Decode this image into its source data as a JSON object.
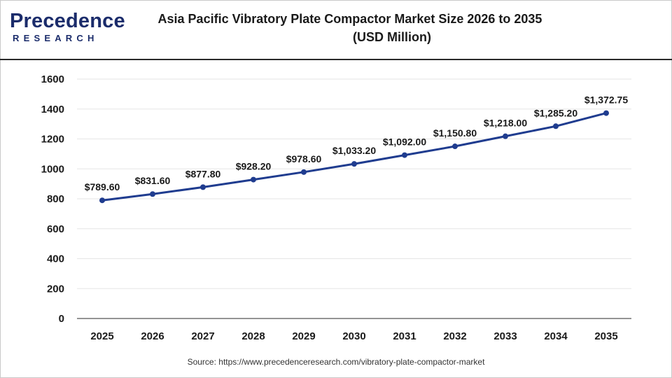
{
  "header": {
    "logo_main": "Precedence",
    "logo_sub": "RESEARCH",
    "title_line1": "Asia Pacific Vibratory Plate Compactor Market Size 2026 to 2035",
    "title_line2": "(USD Million)"
  },
  "footer": {
    "source": "Source: https://www.precedenceresearch.com/vibratory-plate-compactor-market"
  },
  "colors": {
    "line": "#1f3c8f",
    "marker": "#1f3c8f",
    "grid": "#e6e6e6",
    "axis": "#555555"
  },
  "chart_data": {
    "type": "line",
    "categories": [
      "2025",
      "2026",
      "2027",
      "2028",
      "2029",
      "2030",
      "2031",
      "2032",
      "2033",
      "2034",
      "2035"
    ],
    "values": [
      789.6,
      831.6,
      877.8,
      928.2,
      978.6,
      1033.2,
      1092.0,
      1150.8,
      1218.0,
      1285.2,
      1372.75
    ],
    "data_labels": [
      "$789.60",
      "$831.60",
      "$877.80",
      "$928.20",
      "$978.60",
      "$1,033.20",
      "$1,092.00",
      "$1,150.80",
      "$1,218.00",
      "$1,285.20",
      "$1,372.75"
    ],
    "yticks": [
      0,
      200,
      400,
      600,
      800,
      1000,
      1200,
      1400,
      1600
    ],
    "ylim": [
      0,
      1600
    ],
    "title": "Asia Pacific Vibratory Plate Compactor Market Size 2026 to 2035",
    "subtitle": "(USD Million)",
    "xlabel": "",
    "ylabel": "",
    "grid": true,
    "legend": "none"
  }
}
